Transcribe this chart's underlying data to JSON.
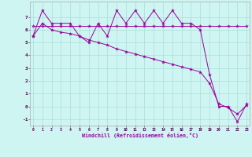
{
  "xlabel": "Windchill (Refroidissement éolien,°C)",
  "background_color": "#cef5f2",
  "grid_color": "#aaddda",
  "line_color": "#990099",
  "xlim_min": 0,
  "xlim_max": 23,
  "ylim_min": -1.5,
  "ylim_max": 8.2,
  "xticks": [
    0,
    1,
    2,
    3,
    4,
    5,
    6,
    7,
    8,
    9,
    10,
    11,
    12,
    13,
    14,
    15,
    16,
    17,
    18,
    19,
    20,
    21,
    22,
    23
  ],
  "yticks": [
    -1,
    0,
    1,
    2,
    3,
    4,
    5,
    6,
    7
  ],
  "s1_x": [
    0,
    1,
    2,
    3,
    4,
    5,
    6,
    7,
    8,
    9,
    10,
    11,
    12,
    13,
    14,
    15,
    16,
    17,
    18,
    19,
    20,
    21,
    22,
    23
  ],
  "s1_y": [
    5.5,
    7.5,
    6.5,
    6.5,
    6.5,
    5.5,
    5.0,
    6.5,
    5.5,
    7.5,
    6.5,
    7.5,
    6.5,
    7.5,
    6.5,
    7.5,
    6.5,
    6.5,
    6.0,
    2.5,
    0.0,
    0.0,
    -1.2,
    0.2
  ],
  "s2_x": [
    0,
    1,
    2,
    3,
    4,
    5,
    6,
    7,
    8,
    9,
    10,
    11,
    12,
    13,
    14,
    15,
    16,
    17,
    18,
    19,
    20,
    21,
    22,
    23
  ],
  "s2_y": [
    6.3,
    6.3,
    6.3,
    6.3,
    6.3,
    6.3,
    6.3,
    6.3,
    6.3,
    6.3,
    6.3,
    6.3,
    6.3,
    6.3,
    6.3,
    6.3,
    6.3,
    6.3,
    6.3,
    6.3,
    6.3,
    6.3,
    6.3,
    6.3
  ],
  "s3_x": [
    0,
    1,
    2,
    3,
    4,
    5,
    6,
    7,
    8,
    9,
    10,
    11,
    12,
    13,
    14,
    15,
    16,
    17,
    18,
    19,
    20,
    21,
    22,
    23
  ],
  "s3_y": [
    5.5,
    6.5,
    6.0,
    5.8,
    5.7,
    5.5,
    5.2,
    5.0,
    4.8,
    4.5,
    4.3,
    4.1,
    3.9,
    3.7,
    3.5,
    3.3,
    3.1,
    2.9,
    2.7,
    1.8,
    0.2,
    -0.1,
    -0.6,
    0.1
  ]
}
